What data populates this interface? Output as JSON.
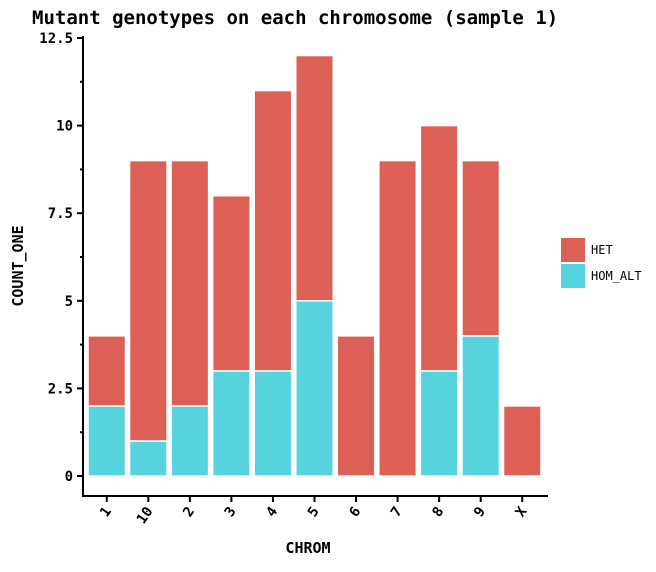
{
  "chart_data": {
    "type": "bar",
    "stacked": true,
    "title": "Mutant genotypes on each chromosome (sample 1)",
    "xlabel": "CHROM",
    "ylabel": "COUNT_ONE",
    "categories": [
      "1",
      "10",
      "2",
      "3",
      "4",
      "5",
      "6",
      "7",
      "8",
      "9",
      "X"
    ],
    "ylim": [
      0,
      12.5
    ],
    "yticks": [
      0,
      2.5,
      5,
      7.5,
      10,
      12.5
    ],
    "ytick_labels": [
      "0",
      "2.5",
      "5",
      "7.5",
      "10",
      "12.5"
    ],
    "grid": false,
    "legend_position": "right",
    "series": [
      {
        "name": "HOM_ALT",
        "color": "#56d3dc",
        "values": [
          2,
          1,
          2,
          3,
          3,
          5,
          0,
          0,
          3,
          4,
          0
        ]
      },
      {
        "name": "HET",
        "color": "#dd6057",
        "values": [
          2,
          8,
          7,
          5,
          8,
          7,
          4,
          9,
          7,
          5,
          2
        ]
      }
    ],
    "legend_order": [
      "HET",
      "HOM_ALT"
    ]
  }
}
